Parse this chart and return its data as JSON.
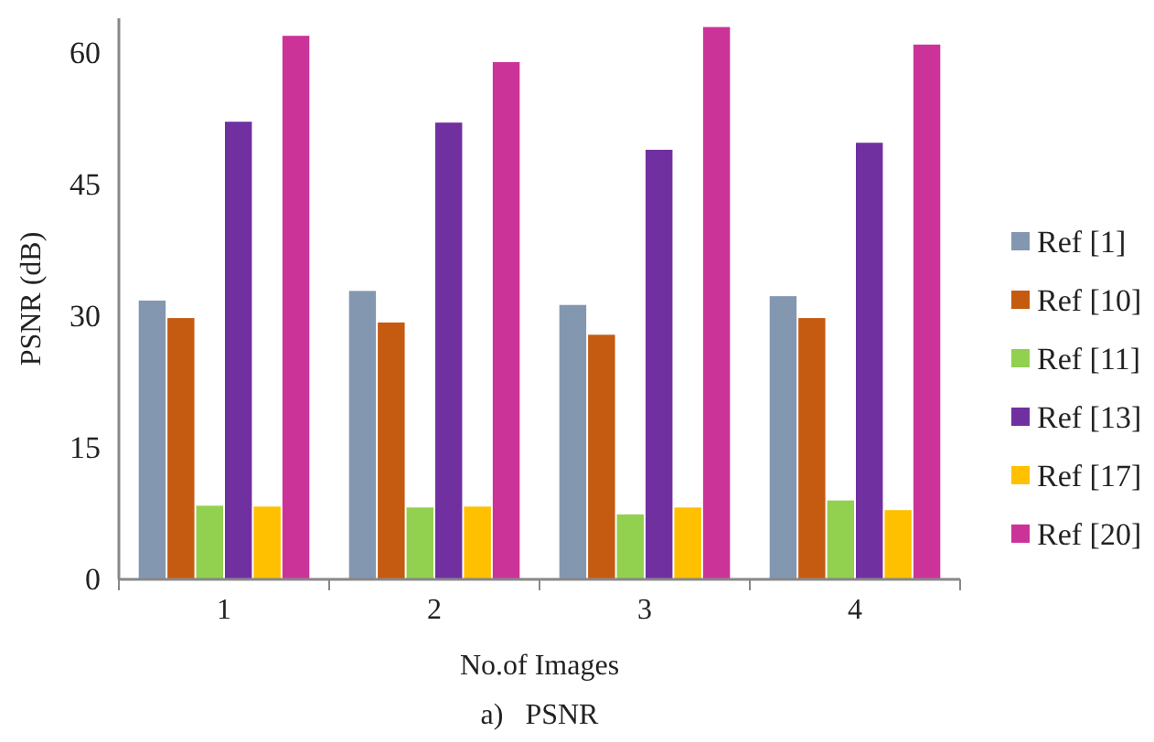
{
  "chart_data": {
    "type": "bar",
    "title": "a)   PSNR",
    "xlabel": "No.of Images",
    "ylabel": "PSNR (dB)",
    "categories": [
      "1",
      "2",
      "3",
      "4"
    ],
    "series": [
      {
        "name": "Ref [1]",
        "color": "#8497b0",
        "values": [
          31.8,
          32.9,
          31.3,
          32.3
        ]
      },
      {
        "name": "Ref [10]",
        "color": "#c55a11",
        "values": [
          29.8,
          29.3,
          27.9,
          29.8
        ]
      },
      {
        "name": "Ref [11]",
        "color": "#92d050",
        "values": [
          8.4,
          8.2,
          7.4,
          9.0
        ]
      },
      {
        "name": "Ref [13]",
        "color": "#7030a0",
        "values": [
          52.2,
          52.1,
          49.0,
          49.8
        ]
      },
      {
        "name": "Ref [17]",
        "color": "#ffc000",
        "values": [
          8.3,
          8.3,
          8.2,
          7.9
        ]
      },
      {
        "name": "Ref [20]",
        "color": "#cc3399",
        "values": [
          62.0,
          59.0,
          63.0,
          61.0
        ]
      }
    ],
    "ylim": [
      0,
      64
    ],
    "yticks": [
      0,
      15,
      30,
      45,
      60
    ],
    "grid": false,
    "legend": "right"
  }
}
